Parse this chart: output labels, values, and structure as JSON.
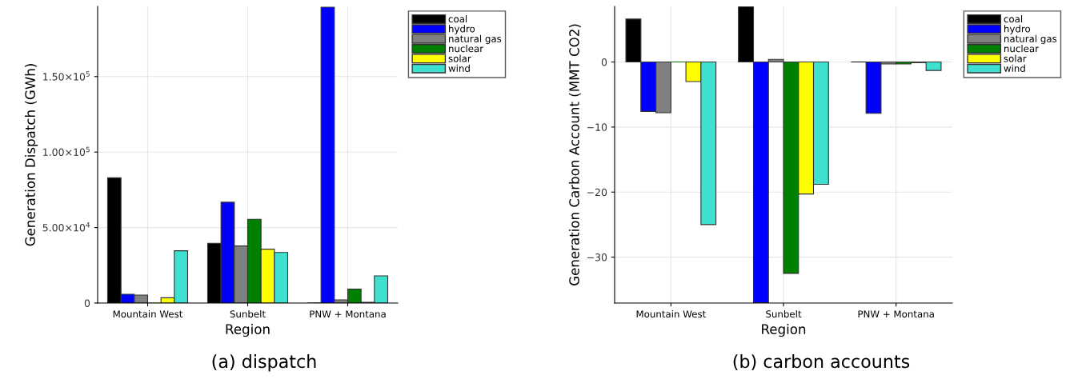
{
  "chart_data": [
    {
      "type": "bar",
      "xlabel": "Region",
      "ylabel": "Generation Dispatch (GWh)",
      "categories": [
        "Mountain West",
        "Sunbelt",
        "PNW + Montana"
      ],
      "series": [
        {
          "name": "coal",
          "color": "#000000",
          "values": [
            83000,
            39600,
            0
          ]
        },
        {
          "name": "hydro",
          "color": "#0000ff",
          "values": [
            5800,
            66800,
            196000
          ]
        },
        {
          "name": "natural gas",
          "color": "#808080",
          "values": [
            5300,
            37800,
            2100
          ]
        },
        {
          "name": "nuclear",
          "color": "#008000",
          "values": [
            0,
            55500,
            9200
          ]
        },
        {
          "name": "solar",
          "color": "#ffff00",
          "values": [
            3500,
            35700,
            500
          ]
        },
        {
          "name": "wind",
          "color": "#40e0d0",
          "values": [
            34600,
            33500,
            18000
          ]
        }
      ],
      "ylim": [
        0,
        196500
      ],
      "yticks": [
        0,
        {
          "value": 50000,
          "label": "5.00×10$^{4}$"
        },
        {
          "value": 100000,
          "label": "1.00×10$^{5}$"
        },
        {
          "value": 150000,
          "label": "1.50×10$^{5}$"
        }
      ],
      "grid": true,
      "legend": "top right",
      "annotations": [
        "(a) dispatch"
      ]
    },
    {
      "type": "bar",
      "xlabel": "Region",
      "ylabel": "Generation Carbon Account (MMT CO2)",
      "categories": [
        "Mountain West",
        "Sunbelt",
        "PNW + Montana"
      ],
      "series": [
        {
          "name": "coal",
          "color": "#000000",
          "values": [
            6.6,
            8.5,
            0
          ]
        },
        {
          "name": "hydro",
          "color": "#0000ff",
          "values": [
            -7.6,
            -37,
            -7.9
          ]
        },
        {
          "name": "natural gas",
          "color": "#808080",
          "values": [
            -7.8,
            0.4,
            -0.3
          ]
        },
        {
          "name": "nuclear",
          "color": "#008000",
          "values": [
            0,
            -32.5,
            -0.3
          ]
        },
        {
          "name": "solar",
          "color": "#ffff00",
          "values": [
            -3.0,
            -20.3,
            -0.1
          ]
        },
        {
          "name": "wind",
          "color": "#40e0d0",
          "values": [
            -25.0,
            -18.8,
            -1.3
          ]
        }
      ],
      "ylim": [
        -37.06,
        8.55
      ],
      "yticks": [
        -30,
        -20,
        -10,
        0
      ],
      "grid": true,
      "legend": "top right",
      "annotations": [
        "(b) carbon accounts"
      ]
    }
  ]
}
